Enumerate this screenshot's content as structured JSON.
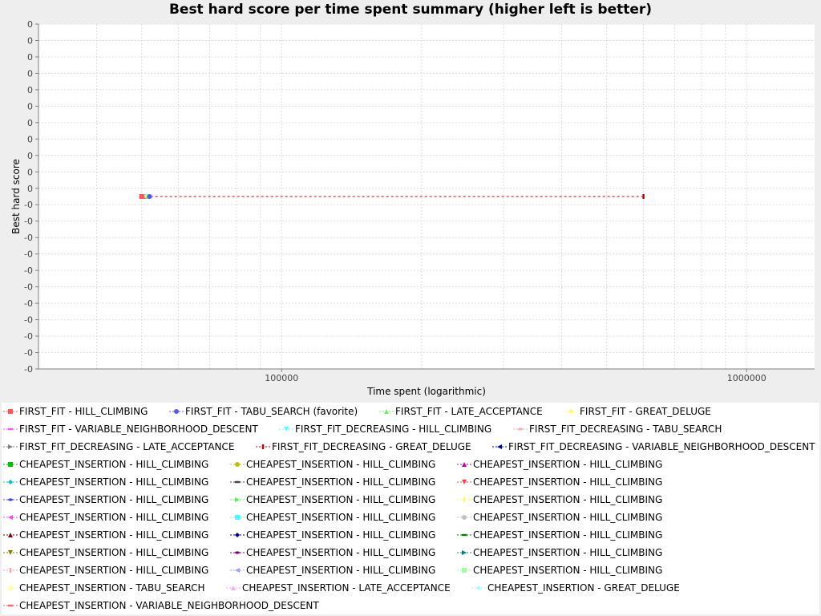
{
  "chart_data": {
    "type": "line",
    "title": "Best hard score per time spent summary (higher left is better)",
    "xlabel": "Time spent (logarithmic)",
    "ylabel": "Best hard score",
    "x_scale": "log",
    "xlim": [
      30000,
      1400000
    ],
    "x_ticks": [
      "100000",
      "1000000"
    ],
    "ylim": [
      -0.01,
      0.01
    ],
    "y_ticks": [
      "0",
      "0",
      "0",
      "0",
      "0",
      "0",
      "0",
      "0",
      "0",
      "0",
      "0",
      "-0",
      "-0",
      "-0",
      "-0",
      "-0",
      "-0",
      "-0",
      "-0",
      "-0",
      "-0",
      "-0"
    ],
    "grid": true,
    "legend_position": "bottom",
    "series": [
      {
        "name": "FIRST_FIT - HILL_CLIMBING",
        "color": "#ff5555",
        "marker": "square",
        "points": [
          [
            50000,
            0
          ]
        ]
      },
      {
        "name": "FIRST_FIT - TABU_SEARCH (favorite)",
        "color": "#5555ff",
        "marker": "circle",
        "points": [
          [
            52000,
            0
          ]
        ]
      },
      {
        "name": "FIRST_FIT - LATE_ACCEPTANCE",
        "color": "#55ff55",
        "marker": "triangle-up",
        "points": [
          [
            51500,
            0
          ]
        ]
      },
      {
        "name": "FIRST_FIT - GREAT_DELUGE",
        "color": "#ffff55",
        "marker": "diamond",
        "points": [
          [
            51200,
            0
          ]
        ]
      },
      {
        "name": "FIRST_FIT - VARIABLE_NEIGHBORHOOD_DESCENT",
        "color": "#ff55ff",
        "marker": "hrect",
        "points": [
          [
            51000,
            0
          ]
        ]
      },
      {
        "name": "FIRST_FIT_DECREASING - HILL_CLIMBING",
        "color": "#55ffff",
        "marker": "triangle-down",
        "points": [
          [
            51000,
            0
          ]
        ]
      },
      {
        "name": "FIRST_FIT_DECREASING - TABU_SEARCH",
        "color": "#ffafaf",
        "marker": "ellipse",
        "points": [
          [
            51000,
            0
          ]
        ]
      },
      {
        "name": "FIRST_FIT_DECREASING - LATE_ACCEPTANCE",
        "color": "#808080",
        "marker": "triangle-right",
        "points": [
          [
            51000,
            0
          ]
        ]
      },
      {
        "name": "FIRST_FIT_DECREASING - GREAT_DELUGE",
        "color": "#c00000",
        "marker": "vrect",
        "points": [
          [
            51000,
            0
          ],
          [
            600000,
            0
          ]
        ]
      },
      {
        "name": "FIRST_FIT_DECREASING - VARIABLE_NEIGHBORHOOD_DESCENT",
        "color": "#0000c0",
        "marker": "triangle-left",
        "points": [
          [
            51000,
            0
          ]
        ]
      },
      {
        "name": "CHEAPEST_INSERTION - HILL_CLIMBING",
        "color": "#00c000",
        "marker": "square",
        "points": []
      },
      {
        "name": "CHEAPEST_INSERTION - HILL_CLIMBING",
        "color": "#c0c000",
        "marker": "circle",
        "points": []
      },
      {
        "name": "CHEAPEST_INSERTION - HILL_CLIMBING",
        "color": "#c000c0",
        "marker": "triangle-up",
        "points": []
      },
      {
        "name": "CHEAPEST_INSERTION - HILL_CLIMBING",
        "color": "#00c0c0",
        "marker": "diamond",
        "points": []
      },
      {
        "name": "CHEAPEST_INSERTION - HILL_CLIMBING",
        "color": "#404040",
        "marker": "hrect",
        "points": []
      },
      {
        "name": "CHEAPEST_INSERTION - HILL_CLIMBING",
        "color": "#ff4040",
        "marker": "triangle-down",
        "points": []
      },
      {
        "name": "CHEAPEST_INSERTION - HILL_CLIMBING",
        "color": "#4040ff",
        "marker": "ellipse",
        "points": []
      },
      {
        "name": "CHEAPEST_INSERTION - HILL_CLIMBING",
        "color": "#40ff40",
        "marker": "triangle-right",
        "points": []
      },
      {
        "name": "CHEAPEST_INSERTION - HILL_CLIMBING",
        "color": "#ffff40",
        "marker": "vrect",
        "points": []
      },
      {
        "name": "CHEAPEST_INSERTION - HILL_CLIMBING",
        "color": "#ff40ff",
        "marker": "triangle-left",
        "points": []
      },
      {
        "name": "CHEAPEST_INSERTION - HILL_CLIMBING",
        "color": "#40ffff",
        "marker": "square",
        "points": []
      },
      {
        "name": "CHEAPEST_INSERTION - HILL_CLIMBING",
        "color": "#c0c0c0",
        "marker": "circle",
        "points": []
      },
      {
        "name": "CHEAPEST_INSERTION - HILL_CLIMBING",
        "color": "#800000",
        "marker": "triangle-up",
        "points": []
      },
      {
        "name": "CHEAPEST_INSERTION - HILL_CLIMBING",
        "color": "#000080",
        "marker": "diamond",
        "points": []
      },
      {
        "name": "CHEAPEST_INSERTION - HILL_CLIMBING",
        "color": "#008000",
        "marker": "hrect",
        "points": []
      },
      {
        "name": "CHEAPEST_INSERTION - HILL_CLIMBING",
        "color": "#808000",
        "marker": "triangle-down",
        "points": []
      },
      {
        "name": "CHEAPEST_INSERTION - HILL_CLIMBING",
        "color": "#800080",
        "marker": "ellipse",
        "points": []
      },
      {
        "name": "CHEAPEST_INSERTION - HILL_CLIMBING",
        "color": "#008080",
        "marker": "triangle-right",
        "points": []
      },
      {
        "name": "CHEAPEST_INSERTION - HILL_CLIMBING",
        "color": "#ff9f9f",
        "marker": "vrect",
        "points": []
      },
      {
        "name": "CHEAPEST_INSERTION - HILL_CLIMBING",
        "color": "#9f9fff",
        "marker": "triangle-left",
        "points": []
      },
      {
        "name": "CHEAPEST_INSERTION - HILL_CLIMBING",
        "color": "#9fff9f",
        "marker": "square",
        "points": []
      },
      {
        "name": "CHEAPEST_INSERTION - TABU_SEARCH",
        "color": "#ffff9f",
        "marker": "circle",
        "points": []
      },
      {
        "name": "CHEAPEST_INSERTION - LATE_ACCEPTANCE",
        "color": "#ff9fff",
        "marker": "triangle-up",
        "points": []
      },
      {
        "name": "CHEAPEST_INSERTION - GREAT_DELUGE",
        "color": "#9fffff",
        "marker": "diamond",
        "points": []
      },
      {
        "name": "CHEAPEST_INSERTION - VARIABLE_NEIGHBORHOOD_DESCENT",
        "color": "#ff6060",
        "marker": "hrect",
        "points": []
      }
    ]
  }
}
